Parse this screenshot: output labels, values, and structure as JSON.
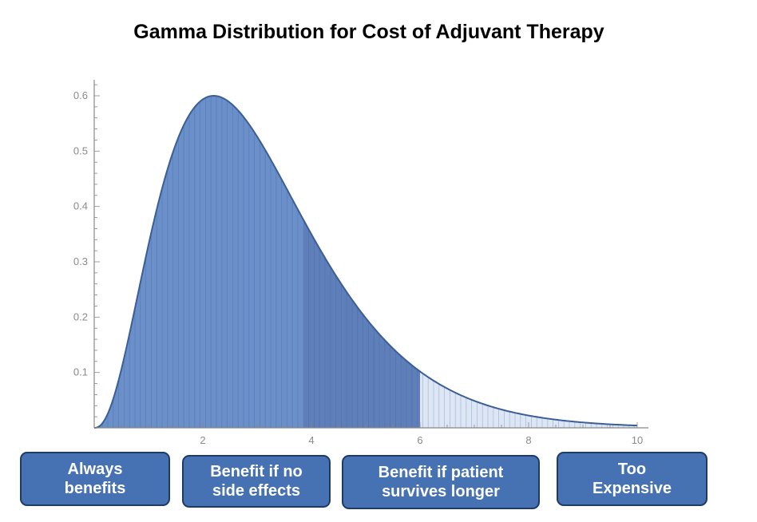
{
  "title": "Gamma Distribution for Cost of Adjuvant Therapy",
  "chart_data": {
    "type": "area",
    "title": "Gamma Distribution for Cost of Adjuvant Therapy",
    "xlabel": "",
    "ylabel": "",
    "xlim": [
      0,
      10
    ],
    "ylim": [
      0,
      0.65
    ],
    "x_ticks": [
      2,
      4,
      6,
      8,
      10
    ],
    "y_ticks": [
      0.1,
      0.2,
      0.3,
      0.4,
      0.5,
      0.6
    ],
    "grid": false,
    "distribution": {
      "family": "gamma",
      "peak_x": 2.2,
      "peak_y": 0.6
    },
    "x": [
      0,
      0.25,
      0.5,
      0.75,
      1.0,
      1.25,
      1.5,
      1.75,
      2.0,
      2.2,
      2.5,
      2.75,
      3.0,
      3.5,
      4.0,
      4.5,
      5.0,
      5.5,
      6.0,
      6.5,
      7.0,
      7.5,
      8.0,
      8.5,
      9.0,
      9.5,
      10.0
    ],
    "y": [
      0,
      0.02,
      0.08,
      0.18,
      0.3,
      0.41,
      0.5,
      0.56,
      0.59,
      0.6,
      0.59,
      0.56,
      0.52,
      0.44,
      0.35,
      0.27,
      0.2,
      0.14,
      0.1,
      0.07,
      0.05,
      0.04,
      0.03,
      0.02,
      0.015,
      0.01,
      0.006
    ],
    "regions": [
      {
        "label": "Always benefits",
        "x_start": 0,
        "x_end": 3.85,
        "color": "#6a8fc9"
      },
      {
        "label": "Benefit if no side effects",
        "x_start": 3.85,
        "x_end": 6.0,
        "color": "#5f7fba"
      },
      {
        "label": "Benefit if patient survives longer",
        "x_start": 6.0,
        "x_end": 10.0,
        "color": "#dde6f4"
      }
    ]
  },
  "boxes": [
    {
      "line1": "Always",
      "line2": "benefits"
    },
    {
      "line1": "Benefit if no",
      "line2": "side effects"
    },
    {
      "line1": "Benefit if patient",
      "line2": "survives longer"
    },
    {
      "line1": "Too",
      "line2": "Expensive"
    }
  ],
  "colors": {
    "box_fill": "#4672b4",
    "box_border": "#1f3a63",
    "curve_outline": "#3b5e96",
    "axis": "#888888"
  }
}
